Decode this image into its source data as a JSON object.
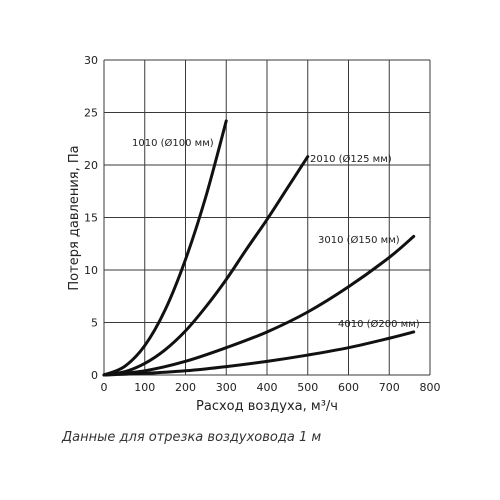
{
  "chart_data": {
    "type": "line",
    "title": "",
    "xlabel": "Расход воздуха, м³/ч",
    "ylabel": "Потеря давления, Па",
    "xlim": [
      0,
      800
    ],
    "ylim": [
      0,
      30
    ],
    "xticks": [
      0,
      100,
      200,
      300,
      400,
      500,
      600,
      700,
      800
    ],
    "yticks": [
      0,
      5,
      10,
      15,
      20,
      25,
      30
    ],
    "grid": true,
    "legend": "none",
    "series": [
      {
        "name": "1010 (Ø100 мм)",
        "x": [
          0,
          50,
          100,
          150,
          200,
          250,
          300
        ],
        "y": [
          0,
          0.8,
          2.8,
          6.2,
          11.0,
          17.0,
          24.2
        ],
        "color": "#111111"
      },
      {
        "name": "2010 (Ø125 мм)",
        "x": [
          0,
          50,
          100,
          150,
          200,
          250,
          300,
          350,
          400,
          450,
          500
        ],
        "y": [
          0,
          0.3,
          1.1,
          2.4,
          4.2,
          6.5,
          9.1,
          12.0,
          14.8,
          17.8,
          20.8
        ],
        "color": "#111111"
      },
      {
        "name": "3010 (Ø150 мм)",
        "x": [
          0,
          100,
          200,
          300,
          400,
          500,
          600,
          700,
          760
        ],
        "y": [
          0,
          0.4,
          1.3,
          2.6,
          4.1,
          6.0,
          8.4,
          11.2,
          13.2
        ],
        "color": "#111111"
      },
      {
        "name": "4010 (Ø200 мм)",
        "x": [
          0,
          100,
          200,
          300,
          400,
          500,
          600,
          700,
          760
        ],
        "y": [
          0,
          0.15,
          0.4,
          0.8,
          1.3,
          1.9,
          2.6,
          3.5,
          4.1
        ],
        "color": "#111111"
      }
    ]
  },
  "caption": "Данные для отрезка воздуховода 1 м"
}
